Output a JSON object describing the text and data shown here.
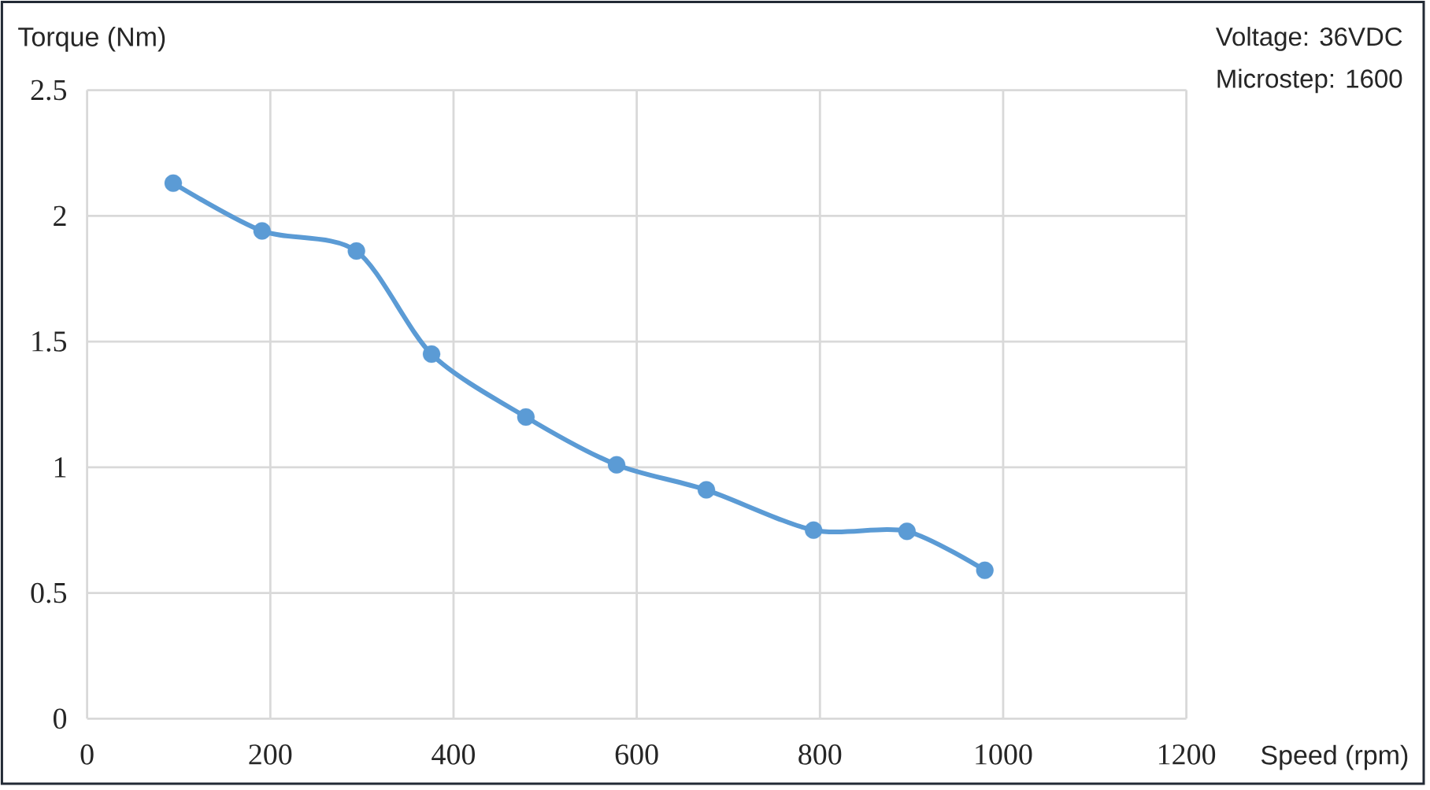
{
  "chart_data": {
    "type": "line",
    "xlabel": "Speed (rpm)",
    "ylabel": "Torque (Nm)",
    "annotations": [
      "Voltage: 36VDC",
      "Microstep: 1600"
    ],
    "x": [
      94,
      191,
      294,
      376,
      479,
      578,
      676,
      793,
      895,
      980
    ],
    "series": [
      {
        "color": "#5b9bd5",
        "values": [
          2.13,
          1.94,
          1.86,
          1.45,
          1.2,
          1.01,
          0.91,
          0.75,
          0.745,
          0.59
        ]
      }
    ],
    "xlim": [
      0,
      1200
    ],
    "ylim": [
      0,
      2.5
    ],
    "xticks": [
      0,
      200,
      400,
      600,
      800,
      1000,
      1200
    ],
    "yticks": [
      0,
      0.5,
      1,
      1.5,
      2,
      2.5
    ],
    "grid": true,
    "marker": "circle",
    "line_style": "solid"
  }
}
